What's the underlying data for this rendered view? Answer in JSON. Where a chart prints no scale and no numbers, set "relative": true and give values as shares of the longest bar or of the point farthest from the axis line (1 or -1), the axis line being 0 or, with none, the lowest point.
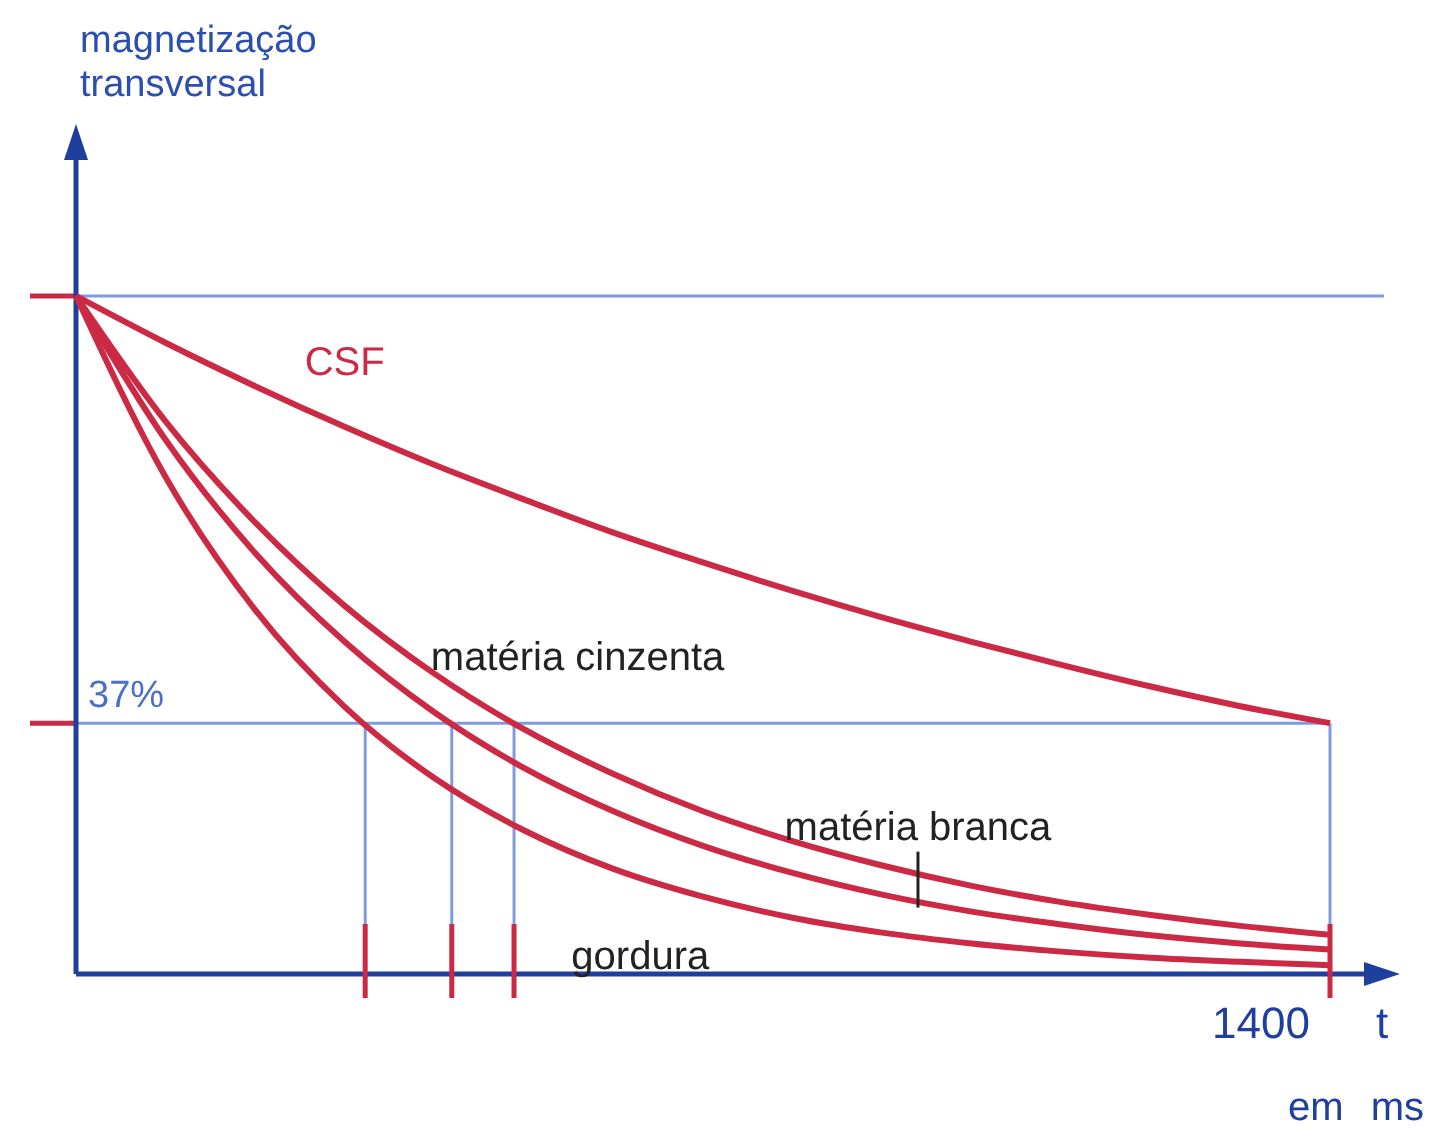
{
  "chart_data": {
    "type": "line",
    "relative": true,
    "xlabel": "t",
    "ylabel": "magnetização transversal",
    "categories": [
      null,
      null,
      null,
      null,
      null,
      null,
      null,
      null,
      null,
      null,
      null,
      null,
      null,
      null,
      null
    ],
    "series": [
      {
        "name": "CSF",
        "color": "#cc2a44",
        "values": [
          1,
          0.931,
          0.867,
          0.807,
          0.751,
          0.7,
          0.651,
          0.607,
          0.565,
          0.526,
          0.49,
          0.456,
          0.424,
          0.395,
          0.37
        ]
      },
      {
        "name": "matéria cinzenta",
        "color": "#cc2a44",
        "values": [
          1,
          0.815,
          0.666,
          0.543,
          0.443,
          0.361,
          0.295,
          0.24,
          0.196,
          0.16,
          0.13,
          0.106,
          0.087,
          0.071,
          0.058
        ]
      },
      {
        "name": "matéria branca",
        "color": "#cc2a44",
        "values": [
          1,
          0.788,
          0.621,
          0.49,
          0.386,
          0.304,
          0.24,
          0.189,
          0.149,
          0.117,
          0.092,
          0.073,
          0.057,
          0.045,
          0.036
        ]
      },
      {
        "name": "gordura",
        "color": "#cc2a44",
        "values": [
          1,
          0.733,
          0.537,
          0.394,
          0.289,
          0.212,
          0.155,
          0.114,
          0.083,
          0.061,
          0.045,
          0.033,
          0.024,
          0.018,
          0.013
        ]
      }
    ],
    "ref_lines": [
      {
        "axis": "y",
        "value": 1,
        "color": "#7f9be0"
      },
      {
        "axis": "y",
        "value": 0.37,
        "label": "37%",
        "color": "#7f9be0"
      }
    ],
    "annotations": [
      "em ms",
      "1400"
    ]
  }
}
